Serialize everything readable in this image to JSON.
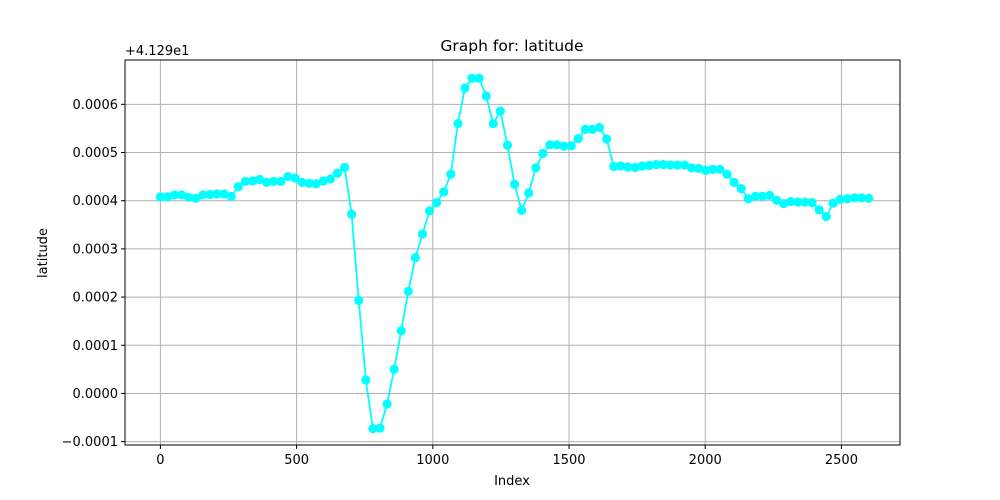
{
  "chart_data": {
    "type": "line",
    "title": "Graph for: latitude",
    "xlabel": "Index",
    "ylabel": "latitude",
    "offset_label": "+4.129e1",
    "xlim": [
      -130,
      2715
    ],
    "ylim": [
      -0.000107,
      0.000692
    ],
    "x_ticks": [
      0,
      500,
      1000,
      1500,
      2000,
      2500
    ],
    "x_tick_labels": [
      "0",
      "500",
      "1000",
      "1500",
      "2000",
      "2500"
    ],
    "y_ticks": [
      -0.0001,
      0.0,
      0.0001,
      0.0002,
      0.0003,
      0.0004,
      0.0005,
      0.0006
    ],
    "y_tick_labels": [
      "−0.0001",
      "0.0000",
      "0.0001",
      "0.0002",
      "0.0003",
      "0.0004",
      "0.0005",
      "0.0006"
    ],
    "grid": true,
    "marker": "circle",
    "series": [
      {
        "color": "#00ffff",
        "x": [
          0,
          26,
          52,
          78,
          104,
          130,
          156,
          182,
          208,
          234,
          260,
          286,
          312,
          338,
          364,
          390,
          416,
          442,
          468,
          494,
          520,
          546,
          572,
          598,
          624,
          650,
          676,
          702,
          728,
          754,
          780,
          806,
          832,
          858,
          884,
          910,
          936,
          962,
          988,
          1014,
          1040,
          1066,
          1092,
          1118,
          1144,
          1170,
          1196,
          1222,
          1248,
          1274,
          1300,
          1326,
          1352,
          1378,
          1404,
          1430,
          1456,
          1482,
          1508,
          1534,
          1560,
          1586,
          1612,
          1638,
          1664,
          1690,
          1716,
          1742,
          1768,
          1794,
          1820,
          1846,
          1872,
          1898,
          1924,
          1950,
          1976,
          2002,
          2028,
          2054,
          2080,
          2106,
          2132,
          2158,
          2184,
          2210,
          2236,
          2262,
          2288,
          2314,
          2340,
          2366,
          2392,
          2418,
          2444,
          2470,
          2496,
          2522,
          2548,
          2574,
          2600
        ],
        "y": [
          0.000408,
          0.000408,
          0.000412,
          0.000412,
          0.000407,
          0.000405,
          0.000412,
          0.000413,
          0.000414,
          0.000414,
          0.000409,
          0.000429,
          0.00044,
          0.000441,
          0.000444,
          0.000438,
          0.00044,
          0.00044,
          0.00045,
          0.000447,
          0.000438,
          0.000436,
          0.000435,
          0.000441,
          0.000445,
          0.000457,
          0.000469,
          0.000372,
          0.000193,
          2.8e-05,
          -7.3e-05,
          -7.2e-05,
          -2.2e-05,
          5e-05,
          0.00013,
          0.000212,
          0.000282,
          0.000331,
          0.000379,
          0.000396,
          0.000418,
          0.000455,
          0.00056,
          0.000634,
          0.000654,
          0.000654,
          0.000617,
          0.00056,
          0.000586,
          0.000515,
          0.000434,
          0.00038,
          0.000416,
          0.000468,
          0.000498,
          0.000516,
          0.000516,
          0.000513,
          0.000514,
          0.000529,
          0.000548,
          0.000548,
          0.000552,
          0.000528,
          0.000471,
          0.000472,
          0.00047,
          0.000469,
          0.000472,
          0.000473,
          0.000475,
          0.000475,
          0.000474,
          0.000474,
          0.000474,
          0.000468,
          0.000467,
          0.000463,
          0.000465,
          0.000465,
          0.000455,
          0.000438,
          0.000425,
          0.000404,
          0.000409,
          0.000409,
          0.000411,
          0.000401,
          0.000394,
          0.000398,
          0.000397,
          0.000397,
          0.000396,
          0.000381,
          0.000367,
          0.000395,
          0.000403,
          0.000404,
          0.000406,
          0.000406,
          0.000405
        ]
      }
    ]
  }
}
